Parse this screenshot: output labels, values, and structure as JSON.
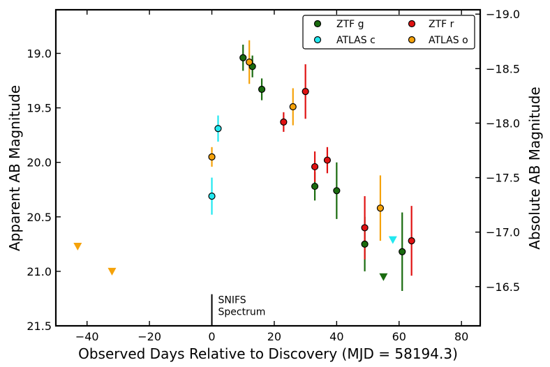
{
  "chart_data": {
    "type": "scatter",
    "xlabel": "Observed Days Relative to Discovery (MJD = 58194.3)",
    "ylabel": "Apparent AB Magnitude",
    "ylabel_right": "Absolute AB Magnitude",
    "xlim": [
      -50,
      86
    ],
    "ylim": [
      21.5,
      18.6
    ],
    "ylim_right": [
      -16.14,
      -19.04
    ],
    "x_ticks": [
      -40,
      -20,
      0,
      20,
      40,
      60,
      80
    ],
    "x_tick_labels": [
      "−40",
      "−20",
      "0",
      "20",
      "40",
      "60",
      "80"
    ],
    "y_ticks": [
      19.0,
      19.5,
      20.0,
      20.5,
      21.0,
      21.5
    ],
    "y_tick_labels": [
      "19.0",
      "19.5",
      "20.0",
      "20.5",
      "21.0",
      "21.5"
    ],
    "y_right_ticks": [
      -19.0,
      -18.5,
      -18.0,
      -17.5,
      -17.0,
      -16.5
    ],
    "y_right_tick_labels": [
      "−19.0",
      "−18.5",
      "−18.0",
      "−17.5",
      "−17.0",
      "−16.5"
    ],
    "legend_position": "top-right",
    "series": [
      {
        "name": "ZTF g",
        "color": "#1a6b0f",
        "points": [
          {
            "x": 10,
            "y": 19.04,
            "err": 0.12
          },
          {
            "x": 13,
            "y": 19.12,
            "err": 0.1
          },
          {
            "x": 16,
            "y": 19.33,
            "err": 0.1
          },
          {
            "x": 33,
            "y": 20.22,
            "err": 0.13
          },
          {
            "x": 40,
            "y": 20.26,
            "err": 0.26
          },
          {
            "x": 49,
            "y": 20.75,
            "err": 0.25
          },
          {
            "x": 61,
            "y": 20.82,
            "err": 0.36
          }
        ],
        "limits": [
          {
            "x": 55,
            "y": 21.05
          }
        ]
      },
      {
        "name": "ATLAS c",
        "color": "#22e8f0",
        "points": [
          {
            "x": 0,
            "y": 20.31,
            "err": 0.17
          },
          {
            "x": 2,
            "y": 19.69,
            "err": 0.12
          }
        ],
        "limits": [
          {
            "x": 58,
            "y": 20.71
          }
        ]
      },
      {
        "name": "ZTF r",
        "color": "#e01212",
        "points": [
          {
            "x": 23,
            "y": 19.63,
            "err": 0.09
          },
          {
            "x": 30,
            "y": 19.35,
            "err": 0.25
          },
          {
            "x": 33,
            "y": 20.04,
            "err": 0.14
          },
          {
            "x": 37,
            "y": 19.98,
            "err": 0.12
          },
          {
            "x": 49,
            "y": 20.6,
            "err": 0.29
          },
          {
            "x": 64,
            "y": 20.72,
            "err": 0.32
          }
        ],
        "limits": []
      },
      {
        "name": "ATLAS o",
        "color": "#f5a20a",
        "points": [
          {
            "x": 0,
            "y": 19.95,
            "err": 0.09
          },
          {
            "x": 12,
            "y": 19.08,
            "err": 0.2
          },
          {
            "x": 26,
            "y": 19.49,
            "err": 0.17
          },
          {
            "x": 54,
            "y": 20.42,
            "err": 0.3
          }
        ],
        "limits": [
          {
            "x": -43,
            "y": 20.77
          },
          {
            "x": -32,
            "y": 21.0
          }
        ]
      }
    ],
    "annotation": {
      "x": 0,
      "y_top": 21.21,
      "line1": "SNIFS",
      "line2": "Spectrum"
    }
  }
}
